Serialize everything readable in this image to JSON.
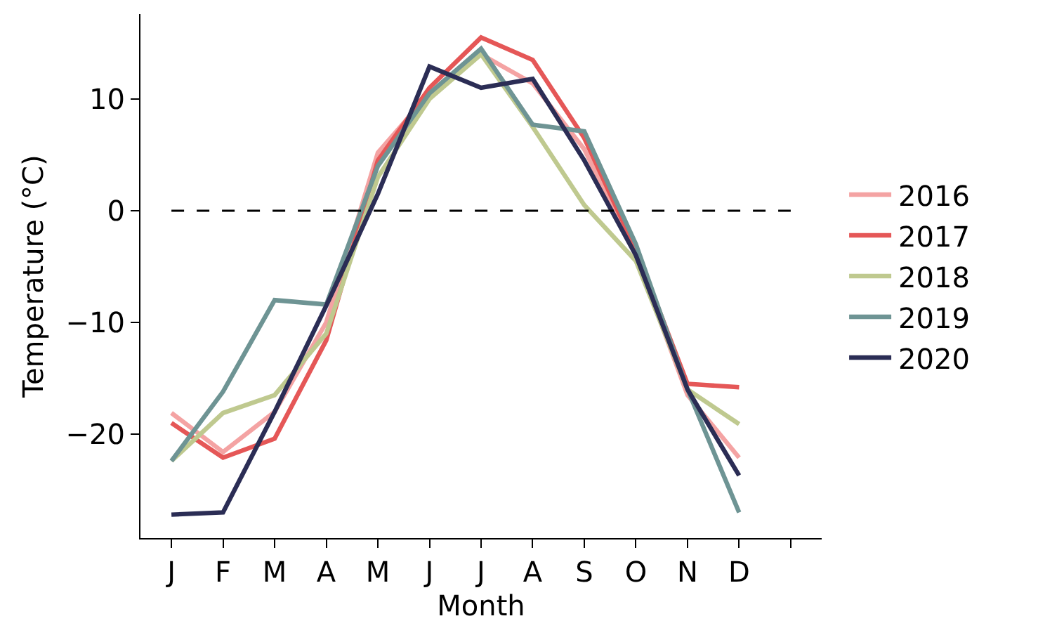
{
  "chart_data": {
    "type": "line",
    "xlabel": "Month",
    "ylabel": "Temperature (°C)",
    "categories": [
      "J",
      "F",
      "M",
      "A",
      "M",
      "J",
      "J",
      "A",
      "S",
      "O",
      "N",
      "D",
      null
    ],
    "ylim": [
      -29.3,
      17.6
    ],
    "yticks": [
      {
        "value": -20,
        "label": "−20"
      },
      {
        "value": -10,
        "label": "−10"
      },
      0,
      10
    ],
    "series": [
      {
        "name": "2016",
        "color": "#f4a3a3",
        "values": [
          -18.1,
          -21.6,
          -18.0,
          -10.0,
          5.2,
          10.5,
          14.0,
          11.4,
          5.5,
          -4.0,
          -16.5,
          -22.1,
          null
        ]
      },
      {
        "name": "2017",
        "color": "#e55757",
        "values": [
          -19.0,
          -22.1,
          -20.4,
          -11.6,
          4.5,
          11.0,
          15.5,
          13.5,
          6.5,
          -3.5,
          -15.5,
          -15.8,
          null
        ]
      },
      {
        "name": "2018",
        "color": "#bfc98f",
        "values": [
          -22.4,
          -18.1,
          -16.5,
          -11.0,
          3.0,
          10.0,
          14.0,
          7.5,
          0.5,
          -4.5,
          -16.0,
          -19.1,
          null
        ]
      },
      {
        "name": "2019",
        "color": "#6e9494",
        "values": [
          -22.4,
          -16.2,
          -8.0,
          -8.4,
          4.0,
          10.5,
          14.5,
          7.7,
          7.1,
          -3.0,
          -16.0,
          -27.0,
          null
        ]
      },
      {
        "name": "2020",
        "color": "#2b2d55",
        "values": [
          -27.2,
          -27.0,
          -18.0,
          -8.5,
          1.5,
          12.9,
          11.0,
          11.8,
          4.5,
          -4.0,
          -16.0,
          -23.7,
          null
        ]
      }
    ],
    "ref_lines": [
      {
        "axis": "y",
        "value": 0,
        "color": "#000000",
        "line_style": "dashed"
      }
    ],
    "legend": "right",
    "marker": "none",
    "line_style": "solid"
  }
}
